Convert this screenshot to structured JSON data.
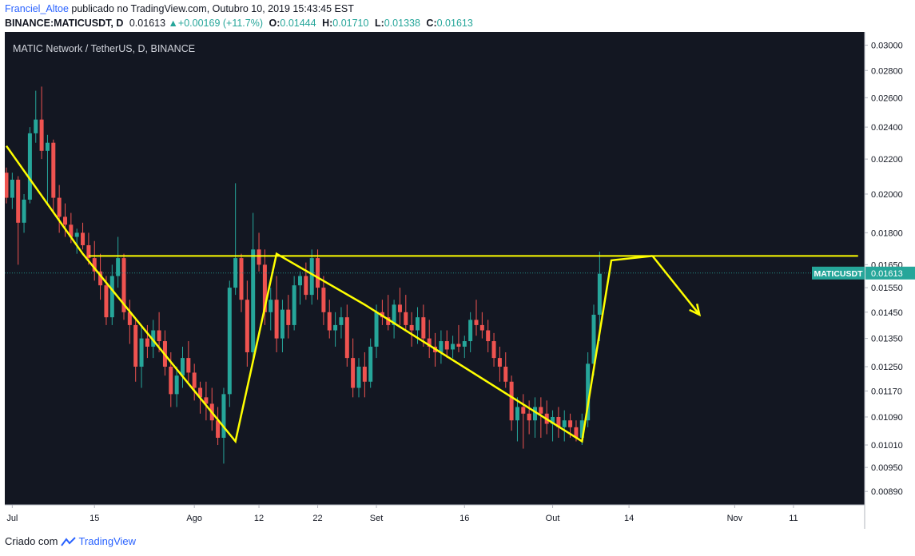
{
  "header": {
    "user": "Franciel_Altoe",
    "published": "publicado no TradingView.com, Outubro 10, 2019 15:43:45 EST",
    "symbol": "BINANCE:MATICUSDT, D",
    "last": "0.01613",
    "change": "+0.00169 (+11.7%)",
    "o_label": "O:",
    "o": "0.01444",
    "h_label": "H:",
    "h": "0.01710",
    "l_label": "L:",
    "l": "0.01338",
    "c_label": "C:",
    "c": "0.01613"
  },
  "footer": {
    "created": "Criado com",
    "brand": "TradingView"
  },
  "colors": {
    "up": "#26a69a",
    "down": "#ef5350",
    "bg": "#131722",
    "drawing": "#ffff00",
    "lastline": "#26a69a"
  },
  "chart_data": {
    "type": "candlestick",
    "title": "MATIC Network / TetherUS, D, BINANCE",
    "scale": "log",
    "y_ticks": [
      "0.03000",
      "0.02800",
      "0.02600",
      "0.02400",
      "0.02200",
      "0.02000",
      "0.01800",
      "0.01650",
      "0.01550",
      "0.01450",
      "0.01350",
      "0.01250",
      "0.01170",
      "0.01090",
      "0.01010",
      "0.00950",
      "0.00890"
    ],
    "x_labels": [
      {
        "label": "Jul",
        "day": 1
      },
      {
        "label": "15",
        "day": 15
      },
      {
        "label": "Ago",
        "day": 32
      },
      {
        "label": "12",
        "day": 43
      },
      {
        "label": "22",
        "day": 53
      },
      {
        "label": "Set",
        "day": 63
      },
      {
        "label": "16",
        "day": 78
      },
      {
        "label": "Out",
        "day": 93
      },
      {
        "label": "14",
        "day": 106
      },
      {
        "label": "Nov",
        "day": 124
      },
      {
        "label": "11",
        "day": 134
      }
    ],
    "last_price_label": "MATICUSDT",
    "last_price": 0.01613,
    "candles": [
      [
        0.0212,
        0.0215,
        0.0195,
        0.0198
      ],
      [
        0.0198,
        0.0212,
        0.0192,
        0.0208
      ],
      [
        0.0208,
        0.021,
        0.0165,
        0.0185
      ],
      [
        0.0185,
        0.02,
        0.018,
        0.0197
      ],
      [
        0.0197,
        0.024,
        0.0195,
        0.0236
      ],
      [
        0.0236,
        0.0265,
        0.023,
        0.0245
      ],
      [
        0.0245,
        0.0268,
        0.022,
        0.0225
      ],
      [
        0.0225,
        0.0235,
        0.0195,
        0.023
      ],
      [
        0.023,
        0.0232,
        0.019,
        0.0198
      ],
      [
        0.0198,
        0.0205,
        0.018,
        0.0188
      ],
      [
        0.0188,
        0.0195,
        0.0178,
        0.0184
      ],
      [
        0.0184,
        0.019,
        0.0175,
        0.0178
      ],
      [
        0.0178,
        0.0182,
        0.017,
        0.018
      ],
      [
        0.018,
        0.0185,
        0.0172,
        0.0174
      ],
      [
        0.0174,
        0.018,
        0.0165,
        0.0168
      ],
      [
        0.0168,
        0.0176,
        0.0158,
        0.0162
      ],
      [
        0.0162,
        0.017,
        0.015,
        0.0156
      ],
      [
        0.0156,
        0.016,
        0.014,
        0.0143
      ],
      [
        0.0143,
        0.0165,
        0.014,
        0.016
      ],
      [
        0.016,
        0.0178,
        0.0155,
        0.0168
      ],
      [
        0.0168,
        0.017,
        0.0142,
        0.0145
      ],
      [
        0.0145,
        0.015,
        0.0133,
        0.014
      ],
      [
        0.014,
        0.0142,
        0.012,
        0.0125
      ],
      [
        0.0125,
        0.014,
        0.0118,
        0.0135
      ],
      [
        0.0135,
        0.014,
        0.0128,
        0.0132
      ],
      [
        0.0132,
        0.0142,
        0.0128,
        0.0138
      ],
      [
        0.0138,
        0.0145,
        0.013,
        0.0134
      ],
      [
        0.0134,
        0.0138,
        0.0122,
        0.0125
      ],
      [
        0.0125,
        0.013,
        0.0112,
        0.0116
      ],
      [
        0.0116,
        0.0125,
        0.0112,
        0.0122
      ],
      [
        0.0122,
        0.0132,
        0.0118,
        0.0128
      ],
      [
        0.0128,
        0.0134,
        0.012,
        0.0123
      ],
      [
        0.0123,
        0.0126,
        0.0114,
        0.0118
      ],
      [
        0.0118,
        0.012,
        0.011,
        0.0115
      ],
      [
        0.0115,
        0.012,
        0.0108,
        0.0113
      ],
      [
        0.0113,
        0.0118,
        0.0105,
        0.0108
      ],
      [
        0.0108,
        0.0112,
        0.0101,
        0.0103
      ],
      [
        0.0103,
        0.0118,
        0.0096,
        0.0116
      ],
      [
        0.0116,
        0.0158,
        0.0112,
        0.0155
      ],
      [
        0.0155,
        0.0206,
        0.0152,
        0.0168
      ],
      [
        0.0168,
        0.017,
        0.0145,
        0.015
      ],
      [
        0.015,
        0.0158,
        0.0125,
        0.013
      ],
      [
        0.013,
        0.019,
        0.0128,
        0.0172
      ],
      [
        0.0172,
        0.018,
        0.0162,
        0.0165
      ],
      [
        0.0165,
        0.0172,
        0.014,
        0.0145
      ],
      [
        0.0145,
        0.0155,
        0.0138,
        0.015
      ],
      [
        0.015,
        0.016,
        0.013,
        0.0135
      ],
      [
        0.0135,
        0.015,
        0.013,
        0.0146
      ],
      [
        0.0146,
        0.0152,
        0.0135,
        0.014
      ],
      [
        0.014,
        0.016,
        0.0138,
        0.0156
      ],
      [
        0.0156,
        0.0162,
        0.0148,
        0.016
      ],
      [
        0.016,
        0.0166,
        0.015,
        0.0152
      ],
      [
        0.0152,
        0.0172,
        0.0148,
        0.0168
      ],
      [
        0.0168,
        0.0172,
        0.015,
        0.0155
      ],
      [
        0.0155,
        0.016,
        0.014,
        0.0145
      ],
      [
        0.0145,
        0.015,
        0.0135,
        0.0138
      ],
      [
        0.0138,
        0.0145,
        0.0132,
        0.014
      ],
      [
        0.014,
        0.0147,
        0.0135,
        0.0143
      ],
      [
        0.0143,
        0.0148,
        0.0125,
        0.0128
      ],
      [
        0.0128,
        0.0135,
        0.0115,
        0.0118
      ],
      [
        0.0118,
        0.0128,
        0.0115,
        0.0125
      ],
      [
        0.0125,
        0.013,
        0.0115,
        0.012
      ],
      [
        0.012,
        0.0135,
        0.0118,
        0.0132
      ],
      [
        0.0132,
        0.0148,
        0.0128,
        0.0145
      ],
      [
        0.0145,
        0.015,
        0.014,
        0.0143
      ],
      [
        0.0143,
        0.0152,
        0.0138,
        0.014
      ],
      [
        0.014,
        0.015,
        0.0135,
        0.0148
      ],
      [
        0.0148,
        0.0155,
        0.014,
        0.0145
      ],
      [
        0.0145,
        0.0152,
        0.0138,
        0.014
      ],
      [
        0.014,
        0.0145,
        0.0132,
        0.0138
      ],
      [
        0.0138,
        0.0147,
        0.0133,
        0.0143
      ],
      [
        0.0143,
        0.0148,
        0.0132,
        0.0135
      ],
      [
        0.0135,
        0.0142,
        0.0128,
        0.0132
      ],
      [
        0.0132,
        0.0137,
        0.0125,
        0.013
      ],
      [
        0.013,
        0.0138,
        0.0126,
        0.0134
      ],
      [
        0.0134,
        0.0138,
        0.0128,
        0.0131
      ],
      [
        0.0131,
        0.0136,
        0.0128,
        0.0133
      ],
      [
        0.0133,
        0.014,
        0.013,
        0.0132
      ],
      [
        0.0132,
        0.0136,
        0.0128,
        0.0134
      ],
      [
        0.0134,
        0.0145,
        0.013,
        0.0142
      ],
      [
        0.0142,
        0.015,
        0.0136,
        0.014
      ],
      [
        0.014,
        0.0145,
        0.0135,
        0.0138
      ],
      [
        0.0138,
        0.0142,
        0.013,
        0.0134
      ],
      [
        0.0134,
        0.0137,
        0.0125,
        0.0128
      ],
      [
        0.0128,
        0.0132,
        0.012,
        0.0125
      ],
      [
        0.0125,
        0.013,
        0.0118,
        0.012
      ],
      [
        0.012,
        0.0122,
        0.0105,
        0.0108
      ],
      [
        0.0108,
        0.0115,
        0.0102,
        0.0112
      ],
      [
        0.0112,
        0.0116,
        0.01,
        0.011
      ],
      [
        0.011,
        0.0114,
        0.0104,
        0.0108
      ],
      [
        0.0108,
        0.0115,
        0.0103,
        0.0112
      ],
      [
        0.0112,
        0.0115,
        0.0103,
        0.011
      ],
      [
        0.011,
        0.0114,
        0.0104,
        0.0107
      ],
      [
        0.0107,
        0.0111,
        0.0102,
        0.0109
      ],
      [
        0.0109,
        0.0112,
        0.0103,
        0.0106
      ],
      [
        0.0106,
        0.0111,
        0.0102,
        0.0108
      ],
      [
        0.0108,
        0.011,
        0.0103,
        0.0106
      ],
      [
        0.0106,
        0.0108,
        0.0102,
        0.0103
      ],
      [
        0.0103,
        0.011,
        0.0101,
        0.0108
      ],
      [
        0.0108,
        0.013,
        0.0106,
        0.0126
      ],
      [
        0.0126,
        0.0148,
        0.0122,
        0.0144
      ],
      [
        0.0144,
        0.0171,
        0.0134,
        0.0161
      ]
    ],
    "drawings": [
      {
        "kind": "hline",
        "price": 0.0169,
        "from_day": 14,
        "to_day": 145
      },
      {
        "kind": "polyline",
        "points": [
          [
            0,
            0.0228
          ],
          [
            13,
            0.017
          ],
          [
            39,
            0.0102
          ],
          [
            46,
            0.017
          ],
          [
            61,
            0.0148
          ],
          [
            98,
            0.0102
          ],
          [
            103,
            0.0167
          ],
          [
            110,
            0.0169
          ]
        ]
      },
      {
        "kind": "arrow",
        "from": [
          110,
          0.0169
        ],
        "to": [
          118,
          0.0144
        ]
      }
    ]
  }
}
